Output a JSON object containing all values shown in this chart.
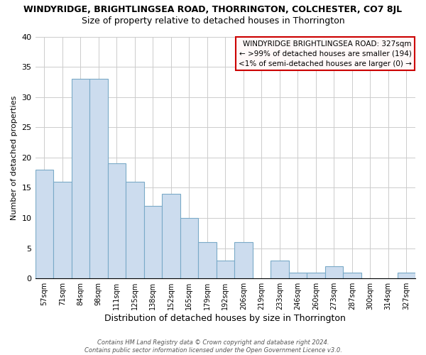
{
  "title": "WINDYRIDGE, BRIGHTLINGSEA ROAD, THORRINGTON, COLCHESTER, CO7 8JL",
  "subtitle": "Size of property relative to detached houses in Thorrington",
  "xlabel": "Distribution of detached houses by size in Thorrington",
  "ylabel": "Number of detached properties",
  "bar_labels": [
    "57sqm",
    "71sqm",
    "84sqm",
    "98sqm",
    "111sqm",
    "125sqm",
    "138sqm",
    "152sqm",
    "165sqm",
    "179sqm",
    "192sqm",
    "206sqm",
    "219sqm",
    "233sqm",
    "246sqm",
    "260sqm",
    "273sqm",
    "287sqm",
    "300sqm",
    "314sqm",
    "327sqm"
  ],
  "bar_values": [
    18,
    16,
    33,
    33,
    19,
    16,
    12,
    14,
    10,
    6,
    3,
    6,
    0,
    3,
    1,
    1,
    2,
    1,
    0,
    0,
    1
  ],
  "bar_color": "#ccdcee",
  "bar_edge_color": "#7aaac8",
  "ylim": [
    0,
    40
  ],
  "yticks": [
    0,
    5,
    10,
    15,
    20,
    25,
    30,
    35,
    40
  ],
  "box_text_line1": "WINDYRIDGE BRIGHTLINGSEA ROAD: 327sqm",
  "box_text_line2": "← >99% of detached houses are smaller (194)",
  "box_text_line3": "<1% of semi-detached houses are larger (0) →",
  "box_facecolor": "#fff8f8",
  "box_edge_color": "#cc0000",
  "footer_line1": "Contains HM Land Registry data © Crown copyright and database right 2024.",
  "footer_line2": "Contains public sector information licensed under the Open Government Licence v3.0.",
  "grid_color": "#cccccc",
  "background_color": "#ffffff",
  "title_fontsize": 9,
  "subtitle_fontsize": 9,
  "ylabel_fontsize": 8,
  "xlabel_fontsize": 9
}
